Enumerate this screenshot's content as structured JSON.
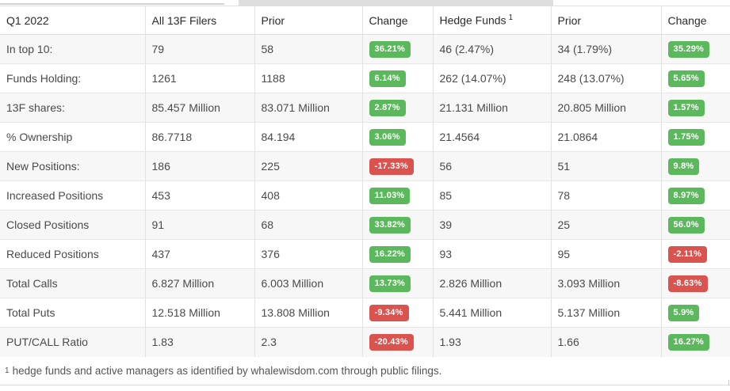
{
  "table": {
    "headers": [
      {
        "label": "Q1 2022"
      },
      {
        "label": "All 13F Filers"
      },
      {
        "label": "Prior"
      },
      {
        "label": "Change"
      },
      {
        "label": "Hedge Funds",
        "superscript": "1"
      },
      {
        "label": "Prior"
      },
      {
        "label": "Change"
      }
    ],
    "rows": [
      {
        "label": "In top 10:",
        "all": "79",
        "all_prior": "58",
        "all_change": {
          "text": "36.21%",
          "dir": "up"
        },
        "hf": "46 (2.47%)",
        "hf_prior": "34 (1.79%)",
        "hf_change": {
          "text": "35.29%",
          "dir": "up"
        }
      },
      {
        "label": "Funds Holding:",
        "all": "1261",
        "all_prior": "1188",
        "all_change": {
          "text": "6.14%",
          "dir": "up"
        },
        "hf": "262 (14.07%)",
        "hf_prior": "248 (13.07%)",
        "hf_change": {
          "text": "5.65%",
          "dir": "up"
        }
      },
      {
        "label": "13F shares:",
        "all": "85.457 Million",
        "all_prior": "83.071 Million",
        "all_change": {
          "text": "2.87%",
          "dir": "up"
        },
        "hf": "21.131 Million",
        "hf_prior": "20.805 Million",
        "hf_change": {
          "text": "1.57%",
          "dir": "up"
        }
      },
      {
        "label": "% Ownership",
        "all": "86.7718",
        "all_prior": "84.194",
        "all_change": {
          "text": "3.06%",
          "dir": "up"
        },
        "hf": "21.4564",
        "hf_prior": "21.0864",
        "hf_change": {
          "text": "1.75%",
          "dir": "up"
        }
      },
      {
        "label": "New Positions:",
        "all": "186",
        "all_prior": "225",
        "all_change": {
          "text": "-17.33%",
          "dir": "down"
        },
        "hf": "56",
        "hf_prior": "51",
        "hf_change": {
          "text": "9.8%",
          "dir": "up"
        }
      },
      {
        "label": "Increased Positions",
        "all": "453",
        "all_prior": "408",
        "all_change": {
          "text": "11.03%",
          "dir": "up"
        },
        "hf": "85",
        "hf_prior": "78",
        "hf_change": {
          "text": "8.97%",
          "dir": "up"
        }
      },
      {
        "label": "Closed Positions",
        "all": "91",
        "all_prior": "68",
        "all_change": {
          "text": "33.82%",
          "dir": "up"
        },
        "hf": "39",
        "hf_prior": "25",
        "hf_change": {
          "text": "56.0%",
          "dir": "up"
        }
      },
      {
        "label": "Reduced Positions",
        "all": "437",
        "all_prior": "376",
        "all_change": {
          "text": "16.22%",
          "dir": "up"
        },
        "hf": "93",
        "hf_prior": "95",
        "hf_change": {
          "text": "-2.11%",
          "dir": "down"
        }
      },
      {
        "label": "Total Calls",
        "all": "6.827 Million",
        "all_prior": "6.003 Million",
        "all_change": {
          "text": "13.73%",
          "dir": "up"
        },
        "hf": "2.826 Million",
        "hf_prior": "3.093 Million",
        "hf_change": {
          "text": "-8.63%",
          "dir": "down"
        }
      },
      {
        "label": "Total Puts",
        "all": "12.518 Million",
        "all_prior": "13.808 Million",
        "all_change": {
          "text": "-9.34%",
          "dir": "down"
        },
        "hf": "5.441 Million",
        "hf_prior": "5.137 Million",
        "hf_change": {
          "text": "5.9%",
          "dir": "up"
        }
      },
      {
        "label": "PUT/CALL Ratio",
        "all": "1.83",
        "all_prior": "2.3",
        "all_change": {
          "text": "-20.43%",
          "dir": "down"
        },
        "hf": "1.93",
        "hf_prior": "1.66",
        "hf_change": {
          "text": "16.27%",
          "dir": "up"
        }
      }
    ]
  },
  "footnote": {
    "superscript": "1",
    "text": "hedge funds and active managers as identified by whalewisdom.com through public filings."
  },
  "colors": {
    "positive_badge": "#5cb85c",
    "negative_badge": "#d9534f",
    "row_stripe": "#f7f7f7",
    "border": "#e2e2e2"
  }
}
